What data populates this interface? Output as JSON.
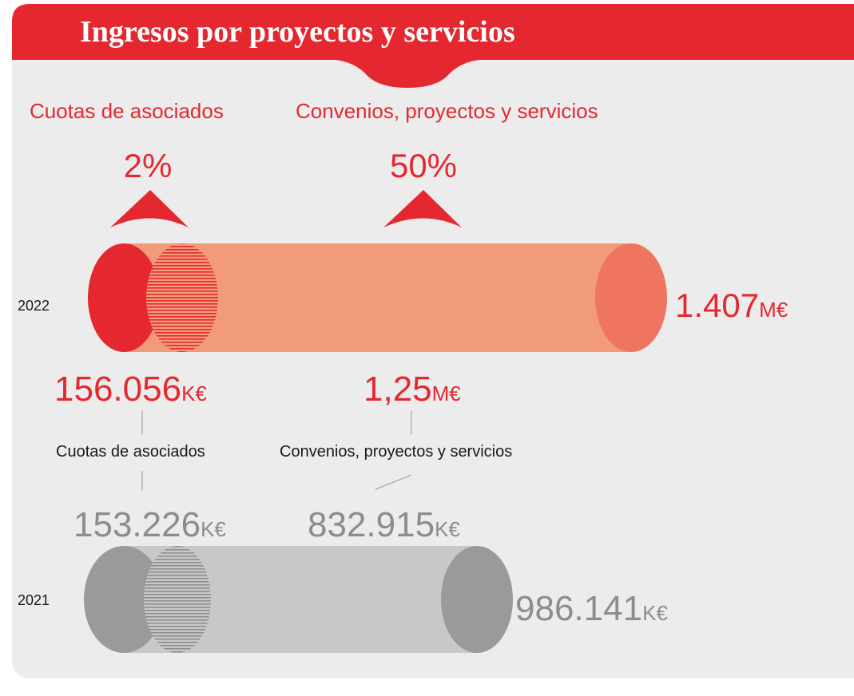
{
  "header": {
    "title": "Ingresos por proyectos y servicios"
  },
  "categories": [
    "Cuotas de asociados",
    "Convenios, proyectos y servicios"
  ],
  "growth": [
    "2%",
    "50%"
  ],
  "years": [
    {
      "year": "2022",
      "total": "1.407",
      "total_unit": "M€",
      "parts": [
        {
          "value": "156.056",
          "unit": "K€"
        },
        {
          "value": "1,25",
          "unit": "M€"
        }
      ]
    },
    {
      "year": "2021",
      "total": "986.141",
      "total_unit": "K€",
      "parts": [
        {
          "value": "153.226",
          "unit": "K€"
        },
        {
          "value": "832.915",
          "unit": "K€"
        }
      ]
    }
  ],
  "labels": [
    "Cuotas de asociados",
    "Convenios, proyectos y servicios"
  ]
}
